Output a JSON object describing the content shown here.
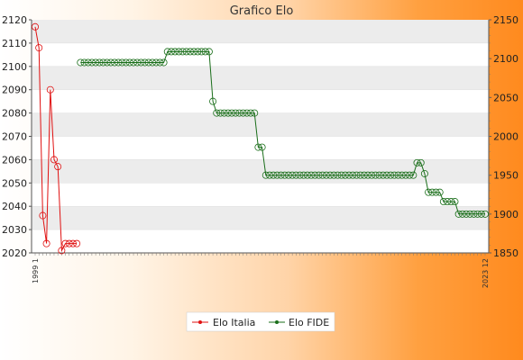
{
  "chart_data": {
    "type": "line",
    "title": "Grafico Elo",
    "xlabel": "",
    "ylabel_left": "",
    "ylabel_right": "",
    "ylim_left": [
      2020,
      2120
    ],
    "ylim_right": [
      1850,
      2150
    ],
    "y_ticks_left": [
      2020,
      2030,
      2040,
      2050,
      2060,
      2070,
      2080,
      2090,
      2100,
      2110,
      2120
    ],
    "y_ticks_right": [
      1850,
      1900,
      1950,
      2000,
      2050,
      2100,
      2150
    ],
    "grid": "horizontal bands",
    "legend_position": "bottom",
    "x_start_label": "1999 1",
    "x_end_label": "2023 12",
    "n_x": 120,
    "series": [
      {
        "name": "Elo Italia",
        "axis": "left",
        "color": "#e01010",
        "points": [
          [
            0,
            2117
          ],
          [
            1,
            2108
          ],
          [
            2,
            2036
          ],
          [
            3,
            2024
          ],
          [
            4,
            2090
          ],
          [
            5,
            2060
          ],
          [
            6,
            2057
          ],
          [
            7,
            2021
          ],
          [
            8,
            2024
          ],
          [
            9,
            2024
          ],
          [
            10,
            2024
          ],
          [
            11,
            2024
          ]
        ]
      },
      {
        "name": "Elo FIDE",
        "axis": "right",
        "color": "#1a6e1a",
        "points": [
          [
            12,
            2095
          ],
          [
            13,
            2095
          ],
          [
            14,
            2095
          ],
          [
            15,
            2095
          ],
          [
            16,
            2095
          ],
          [
            17,
            2095
          ],
          [
            18,
            2095
          ],
          [
            19,
            2095
          ],
          [
            20,
            2095
          ],
          [
            21,
            2095
          ],
          [
            22,
            2095
          ],
          [
            23,
            2095
          ],
          [
            24,
            2095
          ],
          [
            25,
            2095
          ],
          [
            26,
            2095
          ],
          [
            27,
            2095
          ],
          [
            28,
            2095
          ],
          [
            29,
            2095
          ],
          [
            30,
            2095
          ],
          [
            31,
            2095
          ],
          [
            32,
            2095
          ],
          [
            33,
            2095
          ],
          [
            34,
            2095
          ],
          [
            35,
            2109
          ],
          [
            36,
            2109
          ],
          [
            37,
            2109
          ],
          [
            38,
            2109
          ],
          [
            39,
            2109
          ],
          [
            40,
            2109
          ],
          [
            41,
            2109
          ],
          [
            42,
            2109
          ],
          [
            43,
            2109
          ],
          [
            44,
            2109
          ],
          [
            45,
            2109
          ],
          [
            46,
            2109
          ],
          [
            47,
            2045
          ],
          [
            48,
            2030
          ],
          [
            49,
            2030
          ],
          [
            50,
            2030
          ],
          [
            51,
            2030
          ],
          [
            52,
            2030
          ],
          [
            53,
            2030
          ],
          [
            54,
            2030
          ],
          [
            55,
            2030
          ],
          [
            56,
            2030
          ],
          [
            57,
            2030
          ],
          [
            58,
            2030
          ],
          [
            59,
            1986
          ],
          [
            60,
            1986
          ],
          [
            61,
            1950
          ],
          [
            62,
            1950
          ],
          [
            63,
            1950
          ],
          [
            64,
            1950
          ],
          [
            65,
            1950
          ],
          [
            66,
            1950
          ],
          [
            67,
            1950
          ],
          [
            68,
            1950
          ],
          [
            69,
            1950
          ],
          [
            70,
            1950
          ],
          [
            71,
            1950
          ],
          [
            72,
            1950
          ],
          [
            73,
            1950
          ],
          [
            74,
            1950
          ],
          [
            75,
            1950
          ],
          [
            76,
            1950
          ],
          [
            77,
            1950
          ],
          [
            78,
            1950
          ],
          [
            79,
            1950
          ],
          [
            80,
            1950
          ],
          [
            81,
            1950
          ],
          [
            82,
            1950
          ],
          [
            83,
            1950
          ],
          [
            84,
            1950
          ],
          [
            85,
            1950
          ],
          [
            86,
            1950
          ],
          [
            87,
            1950
          ],
          [
            88,
            1950
          ],
          [
            89,
            1950
          ],
          [
            90,
            1950
          ],
          [
            91,
            1950
          ],
          [
            92,
            1950
          ],
          [
            93,
            1950
          ],
          [
            94,
            1950
          ],
          [
            95,
            1950
          ],
          [
            96,
            1950
          ],
          [
            97,
            1950
          ],
          [
            98,
            1950
          ],
          [
            99,
            1950
          ],
          [
            100,
            1950
          ],
          [
            101,
            1966
          ],
          [
            102,
            1966
          ],
          [
            103,
            1952
          ],
          [
            104,
            1928
          ],
          [
            105,
            1928
          ],
          [
            106,
            1928
          ],
          [
            107,
            1928
          ],
          [
            108,
            1916
          ],
          [
            109,
            1916
          ],
          [
            110,
            1916
          ],
          [
            111,
            1916
          ],
          [
            112,
            1900
          ],
          [
            113,
            1900
          ],
          [
            114,
            1900
          ],
          [
            115,
            1900
          ],
          [
            116,
            1900
          ],
          [
            117,
            1900
          ],
          [
            118,
            1900
          ],
          [
            119,
            1900
          ]
        ]
      }
    ]
  }
}
